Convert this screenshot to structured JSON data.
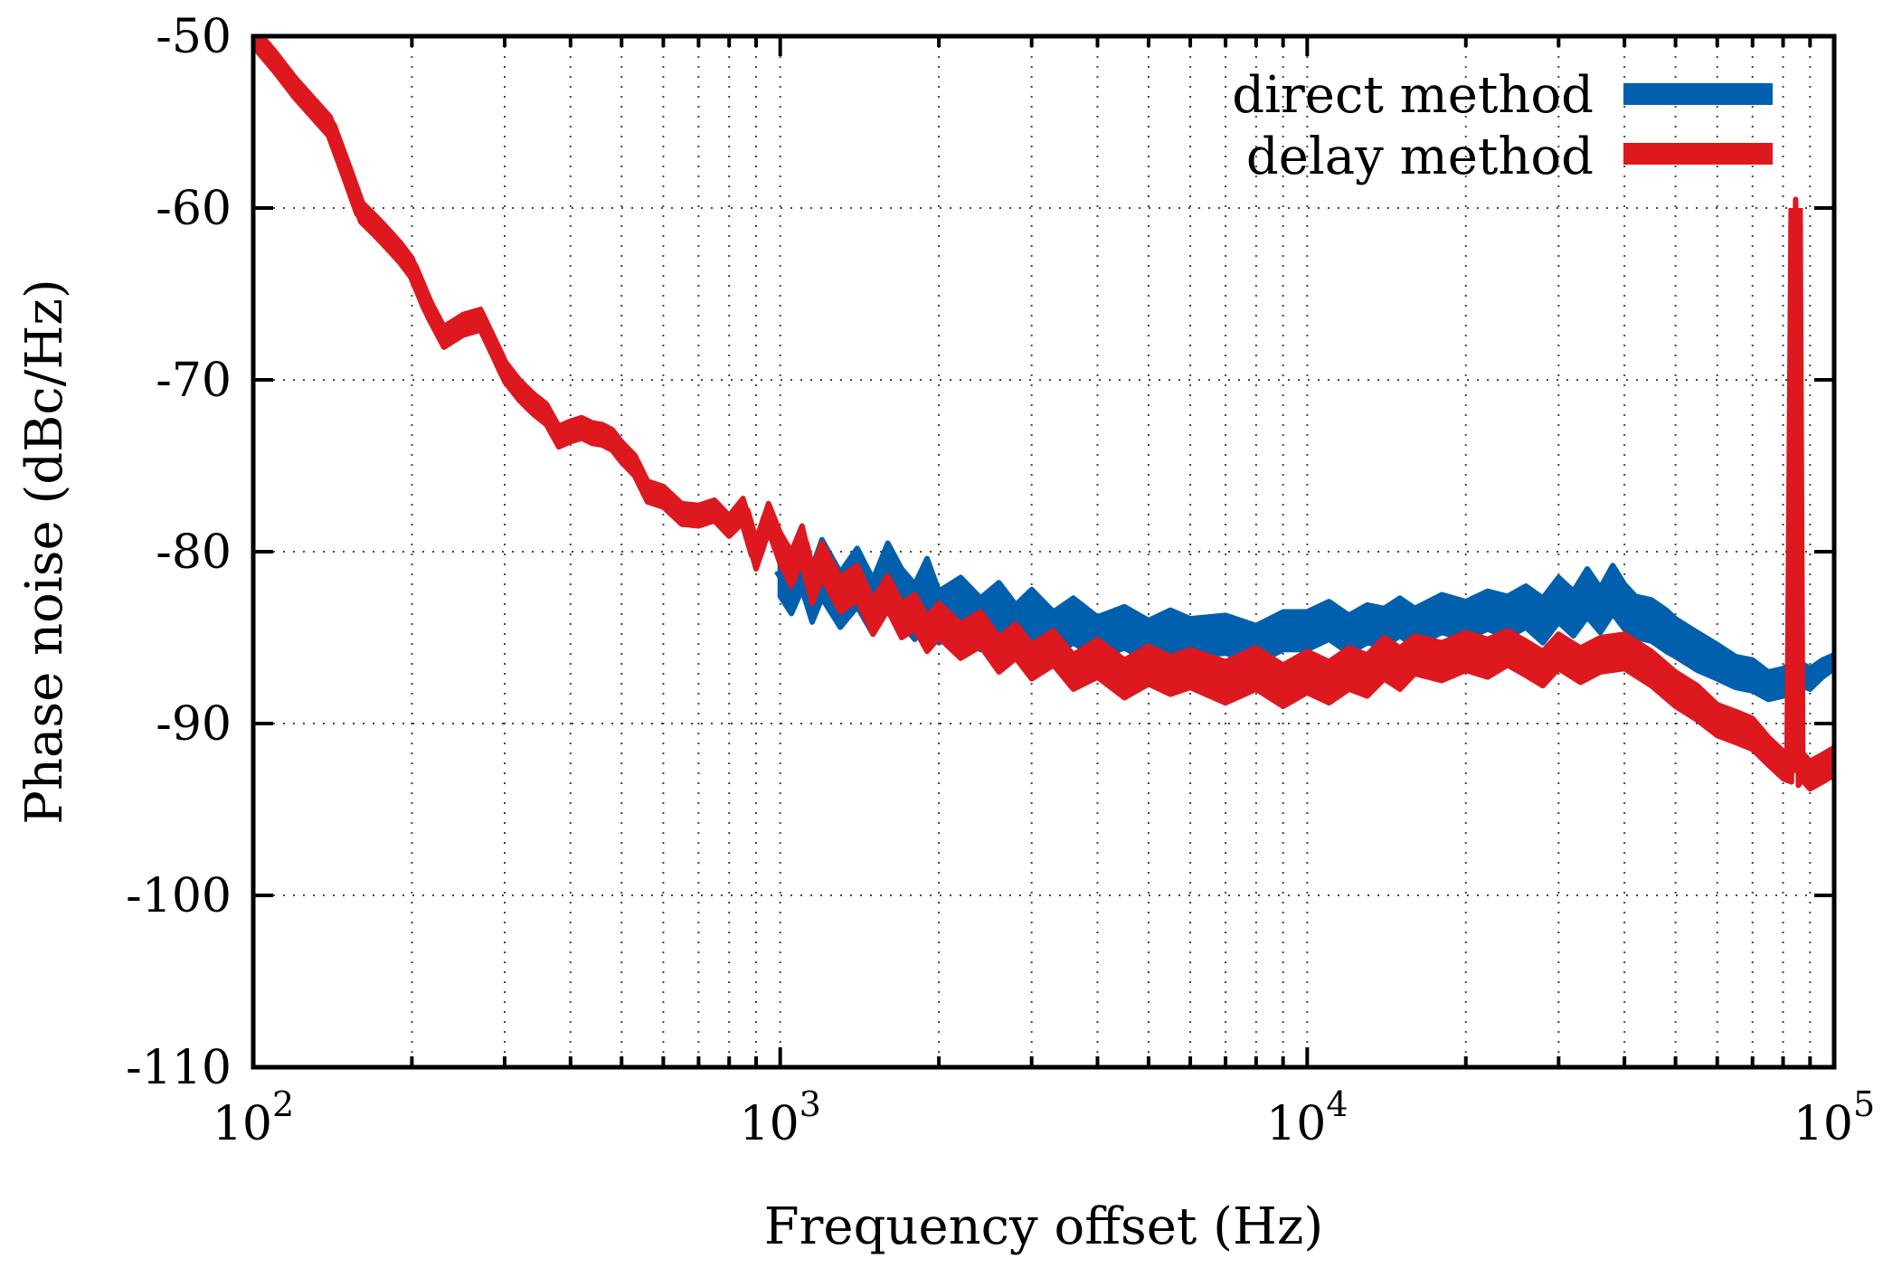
{
  "chart_data": {
    "type": "line",
    "title": "",
    "xlabel": "Frequency offset (Hz)",
    "ylabel": "Phase noise (dBc/Hz)",
    "xscale": "log",
    "xlim": [
      100,
      100000
    ],
    "ylim": [
      -110,
      -50
    ],
    "grid": true,
    "legend_position": "top-right",
    "x_ticks": [
      {
        "value": 100,
        "base": "10",
        "exp": "2"
      },
      {
        "value": 1000,
        "base": "10",
        "exp": "3"
      },
      {
        "value": 10000,
        "base": "10",
        "exp": "4"
      },
      {
        "value": 100000,
        "base": "10",
        "exp": "5"
      }
    ],
    "y_ticks": [
      {
        "value": -50,
        "label": "-50"
      },
      {
        "value": -60,
        "label": "-60"
      },
      {
        "value": -70,
        "label": "-70"
      },
      {
        "value": -80,
        "label": "-80"
      },
      {
        "value": -90,
        "label": "-90"
      },
      {
        "value": -100,
        "label": "-100"
      },
      {
        "value": -110,
        "label": "-110"
      }
    ],
    "series": [
      {
        "name": "direct method",
        "color": "#0060ad",
        "x": [
          1000,
          1050,
          1100,
          1150,
          1200,
          1300,
          1400,
          1500,
          1600,
          1700,
          1800,
          1900,
          2000,
          2200,
          2400,
          2600,
          2800,
          3000,
          3300,
          3600,
          4000,
          4500,
          5000,
          5500,
          6000,
          7000,
          8000,
          9000,
          10000,
          11000,
          12000,
          13000,
          14000,
          15000,
          16000,
          18000,
          20000,
          22000,
          24000,
          26000,
          28000,
          30000,
          32000,
          34000,
          36000,
          38000,
          40000,
          42000,
          45000,
          48000,
          50000,
          55000,
          60000,
          65000,
          70000,
          75000,
          80000,
          85000,
          90000,
          95000,
          100000
        ],
        "y": [
          -81.0,
          -82.0,
          -80.5,
          -82.5,
          -81.0,
          -82.8,
          -81.5,
          -83.2,
          -81.2,
          -82.6,
          -83.5,
          -82.0,
          -83.8,
          -83.0,
          -84.2,
          -83.2,
          -84.5,
          -83.6,
          -84.8,
          -84.0,
          -85.0,
          -84.4,
          -85.2,
          -84.6,
          -85.0,
          -84.8,
          -85.4,
          -84.6,
          -84.6,
          -84.0,
          -84.8,
          -84.2,
          -84.4,
          -83.8,
          -84.4,
          -83.6,
          -84.0,
          -83.4,
          -83.8,
          -83.2,
          -84.0,
          -82.8,
          -83.6,
          -82.4,
          -83.4,
          -82.2,
          -83.2,
          -83.8,
          -84.0,
          -84.6,
          -85.0,
          -85.8,
          -86.4,
          -87.0,
          -87.2,
          -87.8,
          -87.6,
          -87.0,
          -87.4,
          -86.8,
          -86.4
        ],
        "band_halfwidth": [
          1.6,
          1.6,
          1.7,
          1.6,
          1.7,
          1.6,
          1.7,
          1.6,
          1.7,
          1.6,
          1.6,
          1.6,
          1.5,
          1.5,
          1.5,
          1.4,
          1.4,
          1.4,
          1.3,
          1.3,
          1.2,
          1.2,
          1.2,
          1.2,
          1.1,
          1.1,
          1.1,
          1.1,
          1.1,
          1.1,
          1.1,
          1.1,
          1.1,
          1.1,
          1.1,
          1.1,
          1.1,
          1.1,
          1.2,
          1.2,
          1.3,
          1.3,
          1.3,
          1.4,
          1.3,
          1.4,
          1.3,
          1.2,
          1.2,
          1.2,
          1.1,
          1.1,
          1.0,
          0.9,
          0.9,
          0.8,
          0.8,
          0.7,
          0.6,
          0.5,
          0.4
        ]
      },
      {
        "name": "delay method",
        "color": "#dd181f",
        "x": [
          100,
          110,
          120,
          130,
          140,
          150,
          160,
          170,
          180,
          190,
          200,
          215,
          230,
          250,
          270,
          290,
          300,
          320,
          340,
          360,
          380,
          400,
          420,
          440,
          460,
          480,
          500,
          530,
          560,
          600,
          650,
          700,
          750,
          800,
          850,
          900,
          950,
          1000,
          1050,
          1100,
          1150,
          1200,
          1300,
          1400,
          1500,
          1600,
          1700,
          1800,
          1900,
          2000,
          2200,
          2400,
          2600,
          2800,
          3000,
          3300,
          3600,
          4000,
          4500,
          5000,
          5500,
          6000,
          7000,
          8000,
          9000,
          10000,
          11000,
          12000,
          13000,
          14000,
          15000,
          16000,
          18000,
          20000,
          22000,
          24000,
          26000,
          28000,
          30000,
          33000,
          36000,
          40000,
          45000,
          50000,
          55000,
          60000,
          65000,
          70000,
          75000,
          80000,
          83000,
          84500,
          85500,
          87000,
          90000,
          95000,
          100000
        ],
        "y": [
          -50.0,
          -51.5,
          -53.0,
          -54.2,
          -55.3,
          -57.8,
          -60.2,
          -61.0,
          -61.8,
          -62.6,
          -63.5,
          -65.8,
          -67.5,
          -66.8,
          -66.5,
          -68.5,
          -69.5,
          -70.6,
          -71.4,
          -72.0,
          -73.3,
          -73.0,
          -72.8,
          -73.1,
          -73.2,
          -73.5,
          -74.2,
          -75.0,
          -76.5,
          -76.8,
          -77.8,
          -77.9,
          -77.6,
          -78.5,
          -77.6,
          -80.2,
          -78.0,
          -79.8,
          -81.0,
          -79.5,
          -82.0,
          -80.5,
          -82.5,
          -81.8,
          -83.8,
          -82.4,
          -84.0,
          -83.5,
          -84.8,
          -84.0,
          -85.2,
          -84.5,
          -86.0,
          -85.2,
          -86.4,
          -85.6,
          -87.0,
          -86.2,
          -87.4,
          -86.6,
          -87.2,
          -86.8,
          -87.6,
          -86.8,
          -87.8,
          -87.0,
          -87.6,
          -86.8,
          -87.2,
          -86.2,
          -86.8,
          -86.0,
          -86.4,
          -85.8,
          -86.2,
          -85.6,
          -86.2,
          -86.8,
          -85.8,
          -86.6,
          -86.0,
          -85.8,
          -86.8,
          -88.0,
          -88.8,
          -89.8,
          -90.2,
          -90.6,
          -91.6,
          -92.4,
          -92.6,
          -60.0,
          -92.8,
          -92.5,
          -93.0,
          -92.6,
          -92.2
        ],
        "band_halfwidth": [
          0.6,
          0.6,
          0.6,
          0.6,
          0.6,
          0.6,
          0.6,
          0.6,
          0.6,
          0.6,
          0.6,
          0.6,
          0.6,
          0.6,
          0.6,
          0.6,
          0.6,
          0.6,
          0.6,
          0.6,
          0.6,
          0.6,
          0.6,
          0.6,
          0.6,
          0.6,
          0.6,
          0.6,
          0.6,
          0.6,
          0.6,
          0.6,
          0.6,
          0.6,
          0.7,
          0.8,
          0.8,
          0.9,
          1.0,
          1.0,
          1.0,
          1.0,
          1.0,
          1.0,
          1.0,
          1.0,
          1.0,
          1.0,
          1.0,
          1.0,
          1.0,
          1.0,
          1.0,
          1.0,
          1.0,
          1.0,
          1.0,
          1.1,
          1.1,
          1.1,
          1.1,
          1.1,
          1.2,
          1.2,
          1.2,
          1.2,
          1.2,
          1.2,
          1.2,
          1.2,
          1.2,
          1.1,
          1.1,
          1.1,
          1.1,
          1.0,
          1.0,
          1.0,
          1.0,
          1.0,
          1.0,
          1.0,
          1.0,
          1.0,
          1.0,
          0.9,
          0.9,
          0.9,
          0.8,
          0.8,
          0.8,
          0.5,
          0.8,
          0.8,
          0.8,
          0.8,
          0.8
        ]
      }
    ]
  }
}
